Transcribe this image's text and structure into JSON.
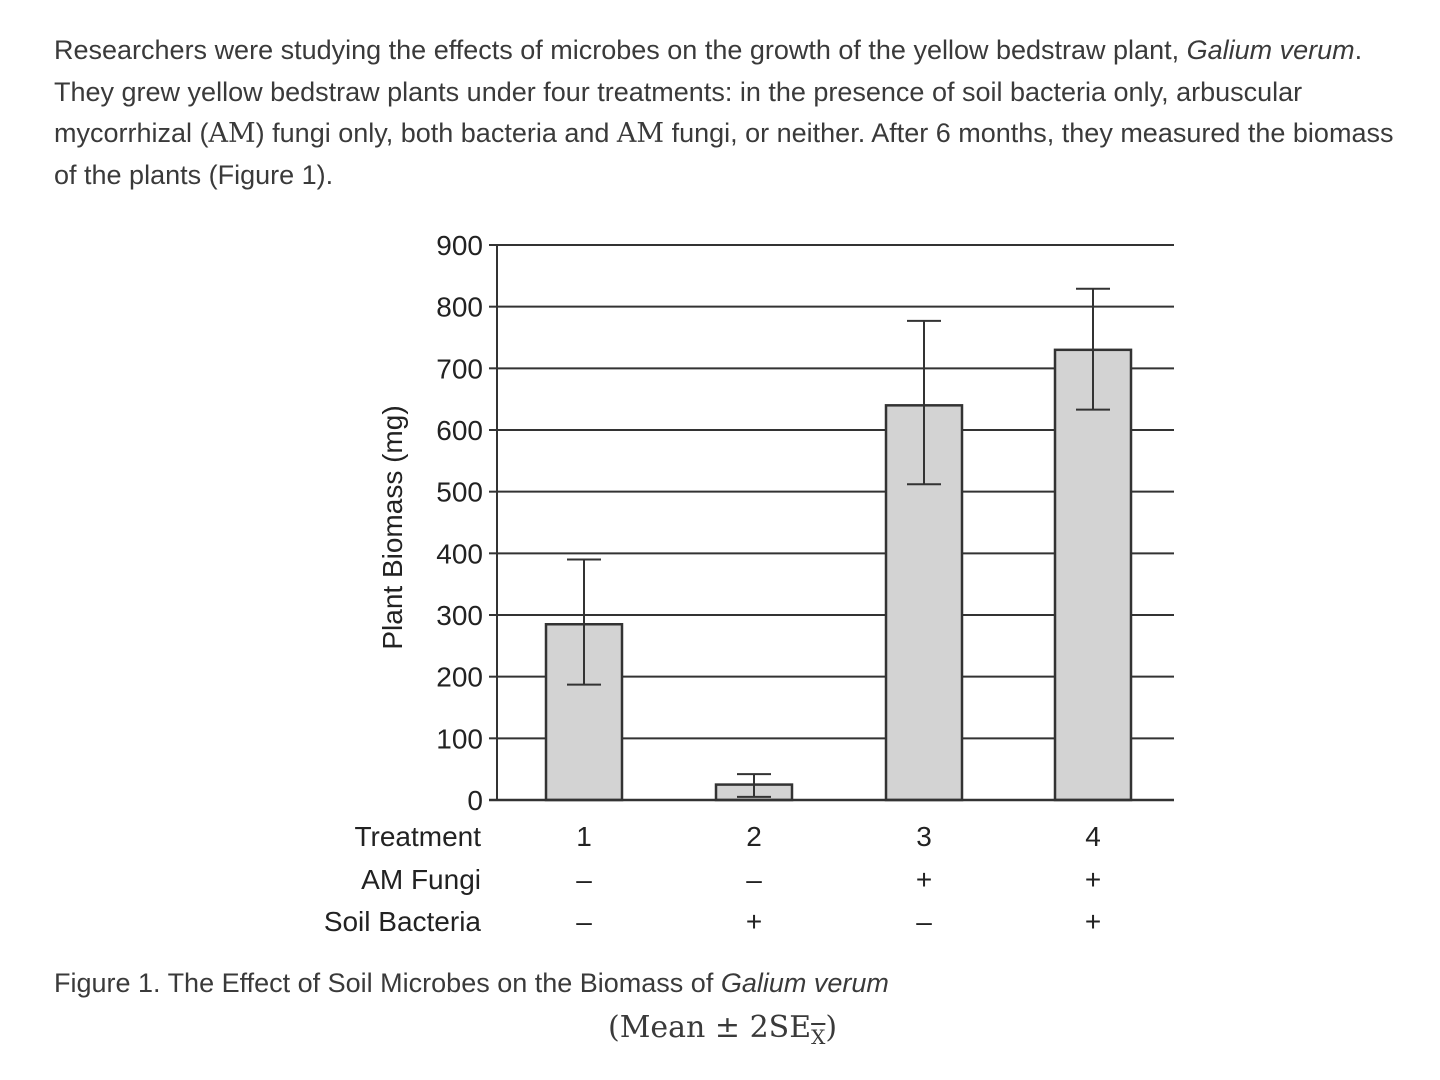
{
  "intro": {
    "part1": "Researchers were studying the effects of microbes on the growth of the yellow bedstraw plant, ",
    "species": "Galium verum",
    "part2": ". They grew yellow bedstraw plants under four treatments: in the presence of soil bacteria only, arbuscular mycorrhizal (",
    "am1": "AM",
    "part3": ") fungi only, both bacteria and ",
    "am2": "AM",
    "part4": " fungi, or neither. After 6 months, they measured the biomass of the plants (Figure 1)."
  },
  "caption": {
    "text": "Figure 1. The Effect of Soil Microbes on the Biomass of ",
    "species": "Galium verum"
  },
  "formula": {
    "open": "(Mean ± 2SE",
    "sub": "X",
    "close": ")"
  },
  "chart_data": {
    "type": "bar",
    "ylabel": "Plant Biomass (mg)",
    "ylim": [
      0,
      900
    ],
    "yticks": [
      0,
      100,
      200,
      300,
      400,
      500,
      600,
      700,
      800,
      900
    ],
    "grid": true,
    "categories": [
      "1",
      "2",
      "3",
      "4"
    ],
    "values": [
      285,
      25,
      640,
      730
    ],
    "error_low": [
      187,
      5,
      512,
      633
    ],
    "error_high": [
      390,
      42,
      777,
      829
    ],
    "table": [
      {
        "label": "Treatment",
        "values": [
          "1",
          "2",
          "3",
          "4"
        ]
      },
      {
        "label": "AM Fungi",
        "values": [
          "–",
          "–",
          "+",
          "+"
        ]
      },
      {
        "label": "Soil Bacteria",
        "values": [
          "–",
          "+",
          "–",
          "+"
        ]
      }
    ],
    "bar_color": "#d3d3d3",
    "line_color": "#333333"
  }
}
